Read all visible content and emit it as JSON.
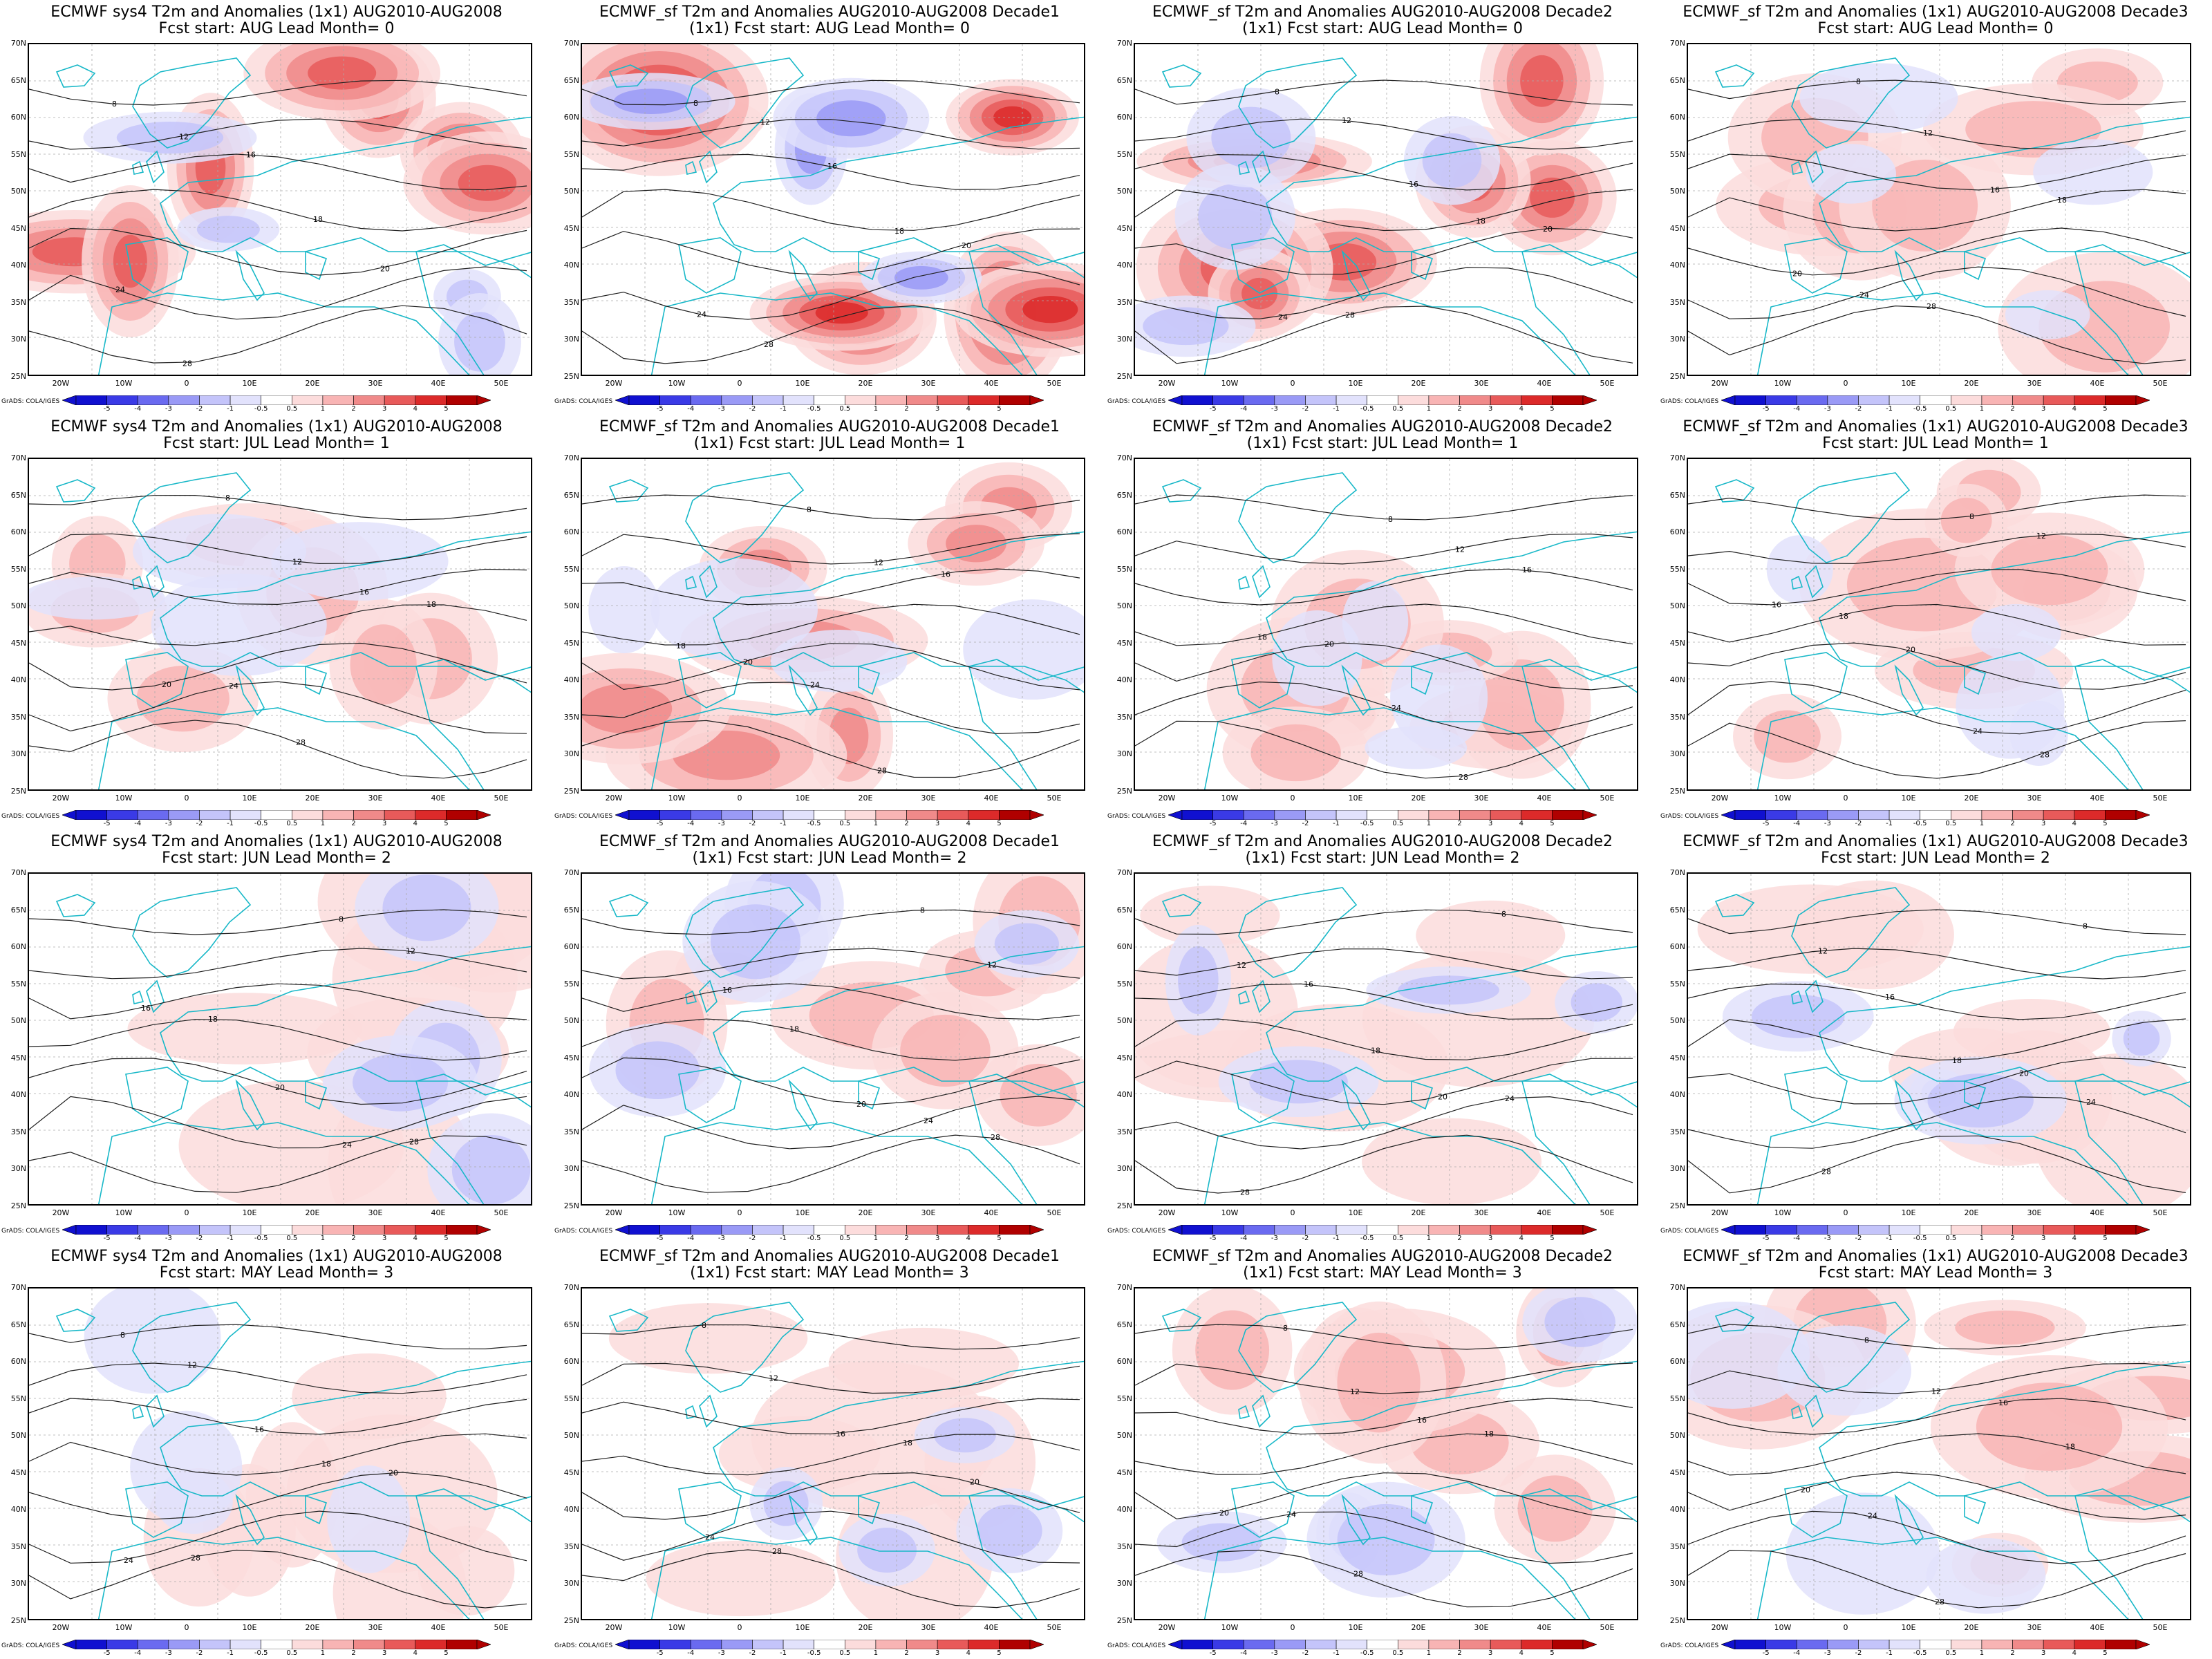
{
  "figure": {
    "credit": "GrADS: COLA/IGES",
    "y_ticks": [
      "70N",
      "65N",
      "60N",
      "55N",
      "50N",
      "45N",
      "40N",
      "35N",
      "30N",
      "25N"
    ],
    "x_ticks": [
      "20W",
      "10W",
      "0",
      "10E",
      "20E",
      "30E",
      "40E",
      "50E"
    ],
    "colorbar": {
      "ticks": [
        "-5",
        "-4",
        "-3",
        "-2",
        "-1",
        "-0.5",
        "0.5",
        "1",
        "2",
        "3",
        "4",
        "5"
      ],
      "colors": [
        "#1010d0",
        "#3a3ae6",
        "#6a6af0",
        "#9a9af6",
        "#c4c4fa",
        "#e2e2fc",
        "#ffffff",
        "#fcdcdc",
        "#f8b4b4",
        "#f08a8a",
        "#e85a5a",
        "#dc2a2a",
        "#b00000"
      ]
    },
    "contour_values": [
      "8",
      "12",
      "16",
      "18",
      "20",
      "24",
      "28"
    ],
    "panels": [
      {
        "title1": "ECMWF sys4 T2m and Anomalies (1x1) AUG2010-AUG2008",
        "title2": "Fcst start: AUG  Lead Month= 0",
        "warm_level": 4,
        "cold_level": 2
      },
      {
        "title1": "ECMWF_sf T2m and Anomalies AUG2010-AUG2008 Decade1",
        "title2": "(1x1) Fcst start: AUG  Lead Month= 0",
        "warm_level": 5,
        "cold_level": 3
      },
      {
        "title1": "ECMWF_sf T2m and Anomalies AUG2010-AUG2008 Decade2",
        "title2": "(1x1) Fcst start: AUG  Lead Month= 0",
        "warm_level": 4,
        "cold_level": 2
      },
      {
        "title1": "ECMWF_sf T2m and Anomalies (1x1) AUG2010-AUG2008 Decade3",
        "title2": "Fcst start: AUG  Lead Month= 0",
        "warm_level": 2,
        "cold_level": 1
      },
      {
        "title1": "ECMWF sys4 T2m and Anomalies (1x1) AUG2010-AUG2008",
        "title2": "Fcst start: JUL  Lead Month= 1",
        "warm_level": 2,
        "cold_level": 1
      },
      {
        "title1": "ECMWF_sf T2m and Anomalies AUG2010-AUG2008 Decade1",
        "title2": "(1x1) Fcst start: JUL  Lead Month= 1",
        "warm_level": 3,
        "cold_level": 1
      },
      {
        "title1": "ECMWF_sf T2m and Anomalies AUG2010-AUG2008 Decade2",
        "title2": "(1x1) Fcst start: JUL  Lead Month= 1",
        "warm_level": 2,
        "cold_level": 1
      },
      {
        "title1": "ECMWF_sf T2m and Anomalies (1x1) AUG2010-AUG2008 Decade3",
        "title2": "Fcst start: JUL  Lead Month= 1",
        "warm_level": 2,
        "cold_level": 1
      },
      {
        "title1": "ECMWF sys4 T2m and Anomalies (1x1) AUG2010-AUG2008",
        "title2": "Fcst start: JUN  Lead Month= 2",
        "warm_level": 1,
        "cold_level": 2
      },
      {
        "title1": "ECMWF_sf T2m and Anomalies AUG2010-AUG2008 Decade1",
        "title2": "(1x1) Fcst start: JUN  Lead Month= 2",
        "warm_level": 2,
        "cold_level": 2
      },
      {
        "title1": "ECMWF_sf T2m and Anomalies AUG2010-AUG2008 Decade2",
        "title2": "(1x1) Fcst start: JUN  Lead Month= 2",
        "warm_level": 1,
        "cold_level": 2
      },
      {
        "title1": "ECMWF_sf T2m and Anomalies (1x1) AUG2010-AUG2008 Decade3",
        "title2": "Fcst start: JUN  Lead Month= 2",
        "warm_level": 1,
        "cold_level": 2
      },
      {
        "title1": "ECMWF sys4 T2m and Anomalies (1x1) AUG2010-AUG2008",
        "title2": "Fcst start: MAY  Lead Month= 3",
        "warm_level": 1,
        "cold_level": 1
      },
      {
        "title1": "ECMWF_sf T2m and Anomalies AUG2010-AUG2008 Decade1",
        "title2": "(1x1) Fcst start: MAY  Lead Month= 3",
        "warm_level": 1,
        "cold_level": 2
      },
      {
        "title1": "ECMWF_sf T2m and Anomalies AUG2010-AUG2008 Decade2",
        "title2": "(1x1) Fcst start: MAY  Lead Month= 3",
        "warm_level": 2,
        "cold_level": 2
      },
      {
        "title1": "ECMWF_sf T2m and Anomalies (1x1) AUG2010-AUG2008 Decade3",
        "title2": "Fcst start: MAY  Lead Month= 3",
        "warm_level": 2,
        "cold_level": 1
      }
    ]
  }
}
